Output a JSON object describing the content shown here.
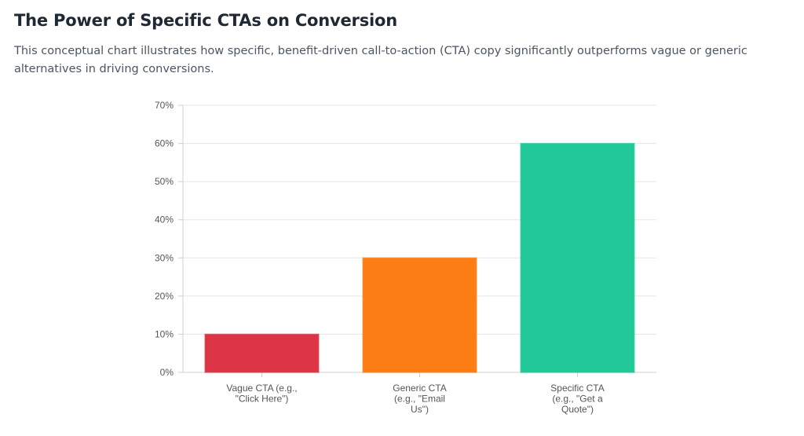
{
  "header": {
    "title": "The Power of Specific CTAs on Conversion",
    "description": "This conceptual chart illustrates how specific, benefit-driven call-to-action (CTA) copy significantly outperforms vague or generic alternatives in driving conversions."
  },
  "chart_data": {
    "type": "bar",
    "title": "",
    "xlabel": "",
    "ylabel": "",
    "categories": [
      [
        "Vague CTA (e.g.,",
        "\"Click Here\")"
      ],
      [
        "Generic CTA",
        "(e.g., \"Email",
        "Us\")"
      ],
      [
        "Specific CTA",
        "(e.g., \"Get a",
        "Quote\")"
      ]
    ],
    "values": [
      10,
      30,
      60
    ],
    "colors": [
      "#dc3545",
      "#fd7e14",
      "#20c997"
    ],
    "ylim": [
      0,
      70
    ],
    "ytick_step": 10,
    "ytick_format": "{v}%",
    "grid": true,
    "legend": "none"
  }
}
